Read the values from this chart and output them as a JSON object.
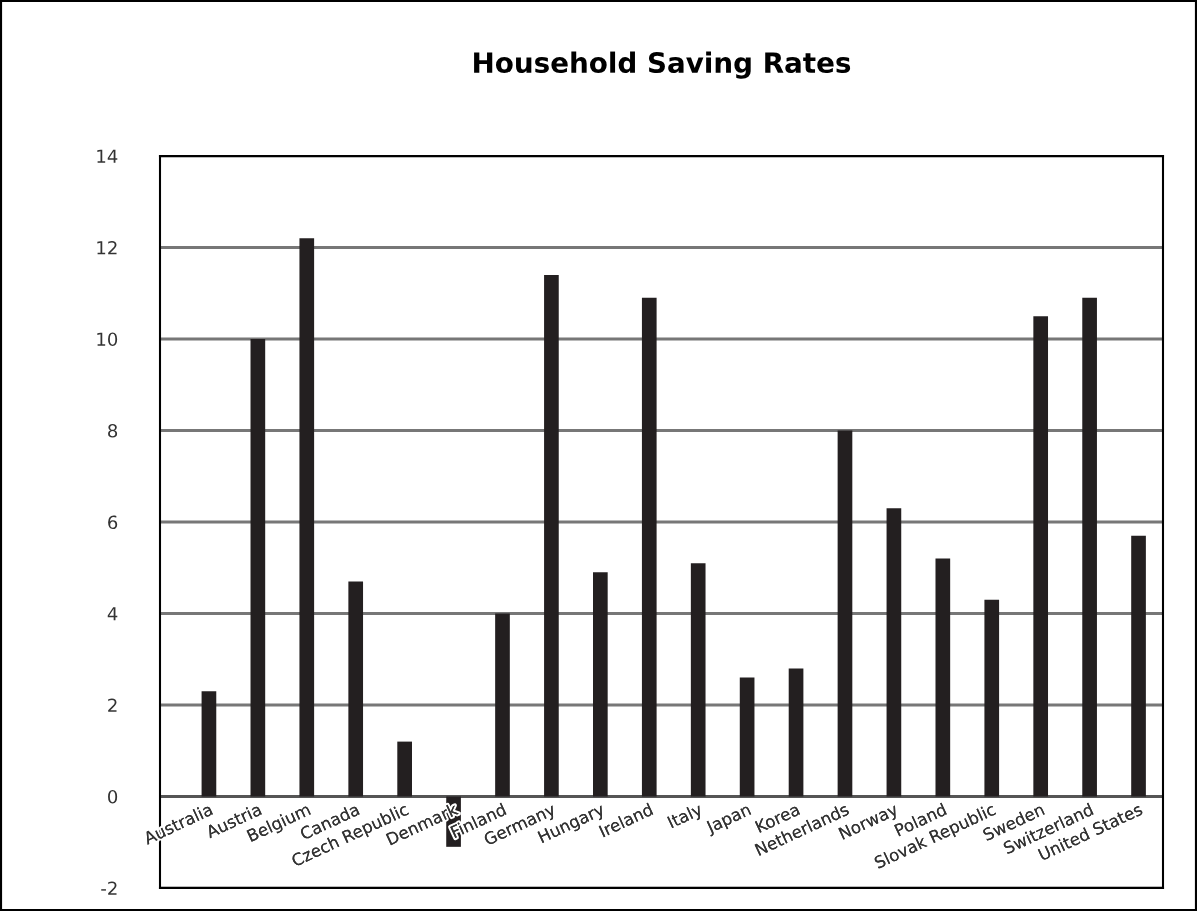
{
  "chart_data": {
    "type": "bar",
    "title": "Household Saving Rates",
    "categories": [
      "Australia",
      "Austria",
      "Belgium",
      "Canada",
      "Czech Republic",
      "Denmark",
      "Finland",
      "Germany",
      "Hungary",
      "Ireland",
      "Italy",
      "Japan",
      "Korea",
      "Netherlands",
      "Norway",
      "Poland",
      "Slovak Republic",
      "Sweden",
      "Switzerland",
      "United States"
    ],
    "values": [
      2.3,
      10.0,
      12.2,
      4.7,
      1.2,
      -1.1,
      4.0,
      11.4,
      4.9,
      10.9,
      5.1,
      2.6,
      2.8,
      8.0,
      6.3,
      5.2,
      4.3,
      10.5,
      10.9,
      5.7
    ],
    "color": "#231f20",
    "ylim": [
      -2,
      14
    ],
    "yticks": [
      -2,
      0,
      2,
      4,
      6,
      8,
      10,
      12,
      14
    ],
    "grid": "y"
  }
}
